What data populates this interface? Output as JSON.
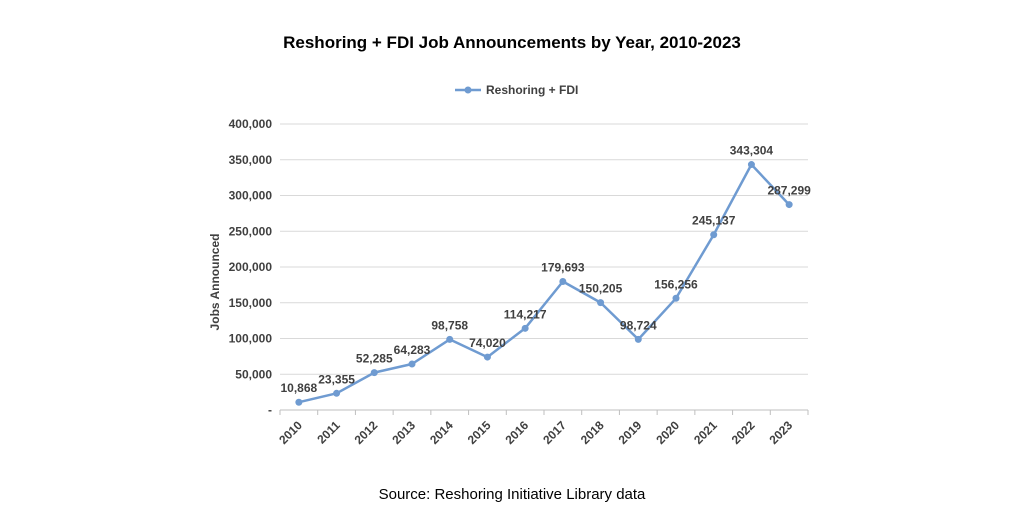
{
  "chart_data": {
    "type": "line",
    "title": "Reshoring + FDI Job Announcements by Year, 2010-2023",
    "ylabel": "Jobs Announced",
    "xlabel": "",
    "categories": [
      "2010",
      "2011",
      "2012",
      "2013",
      "2014",
      "2015",
      "2016",
      "2017",
      "2018",
      "2019",
      "2020",
      "2021",
      "2022",
      "2023"
    ],
    "series": [
      {
        "name": "Reshoring + FDI",
        "color": "#6f9bd1",
        "values": [
          10868,
          23355,
          52285,
          64283,
          98758,
          74020,
          114217,
          179693,
          150205,
          98724,
          156256,
          245137,
          343304,
          287299
        ],
        "labels": [
          "10,868",
          "23,355",
          "52,285",
          "64,283",
          "98,758",
          "74,020",
          "114,217",
          "179,693",
          "150,205",
          "98,724",
          "156,256",
          "245,137",
          "343,304",
          "287,299"
        ]
      }
    ],
    "ylim": [
      0,
      400000
    ],
    "yticks": [
      0,
      50000,
      100000,
      150000,
      200000,
      250000,
      300000,
      350000,
      400000
    ],
    "ytick_labels": [
      "-",
      "50,000",
      "100,000",
      "150,000",
      "200,000",
      "250,000",
      "300,000",
      "350,000",
      "400,000"
    ],
    "grid": true,
    "legend": "top"
  },
  "source": "Source: Reshoring Initiative Library data"
}
